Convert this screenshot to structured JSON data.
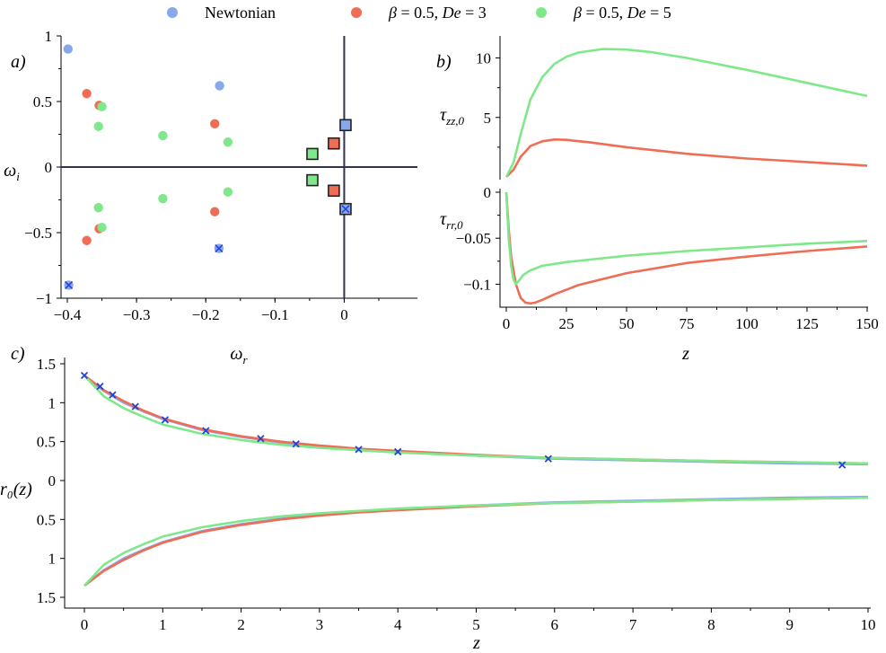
{
  "legend": [
    {
      "text": "Newtonian",
      "color": "#89a8ec"
    },
    {
      "text": "β = 0.5, De = 3",
      "color": "#ef6d55"
    },
    {
      "text": "β = 0.5, De = 5",
      "color": "#7fe88a"
    }
  ],
  "chart_data": [
    {
      "panel": "a)",
      "type": "scatter",
      "xlabel": "ω_r",
      "ylabel": "ω_i",
      "xlim": [
        -0.4,
        0.05
      ],
      "ylim": [
        -1,
        1
      ],
      "xticks": [
        -0.4,
        -0.3,
        -0.2,
        -0.1,
        0
      ],
      "xtick_labels": [
        "−0.4",
        "−0.3",
        "−0.2",
        "−0.1",
        "0"
      ],
      "yticks": [
        1,
        0.5,
        0,
        -0.5,
        -1
      ],
      "ytick_labels": [
        "1",
        "0.5",
        "0",
        "−0.5",
        "−1"
      ],
      "series": [
        {
          "name": "Newtonian",
          "color": "#89a8ec",
          "points": [
            [
              -0.399,
              0.9
            ],
            [
              -0.398,
              -0.9
            ],
            [
              -0.18,
              0.62
            ],
            [
              -0.181,
              -0.62
            ]
          ],
          "crossed": [
            [
              -0.398,
              -0.9
            ],
            [
              -0.181,
              -0.62
            ]
          ],
          "boxed": [
            [
              0.002,
              0.32
            ],
            [
              0.002,
              -0.32
            ]
          ],
          "boxed_crossed": [
            [
              0.002,
              -0.32
            ]
          ]
        },
        {
          "name": "β = 0.5, De = 3",
          "color": "#ef6d55",
          "points": [
            [
              -0.372,
              0.56
            ],
            [
              -0.372,
              -0.56
            ],
            [
              -0.354,
              0.47
            ],
            [
              -0.354,
              -0.47
            ],
            [
              -0.187,
              0.33
            ],
            [
              -0.187,
              -0.34
            ]
          ],
          "boxed": [
            [
              -0.015,
              0.18
            ],
            [
              -0.015,
              -0.18
            ]
          ]
        },
        {
          "name": "β = 0.5, De = 5",
          "color": "#7fe88a",
          "points": [
            [
              -0.35,
              0.46
            ],
            [
              -0.35,
              -0.46
            ],
            [
              -0.355,
              0.31
            ],
            [
              -0.355,
              -0.31
            ],
            [
              -0.262,
              0.24
            ],
            [
              -0.262,
              -0.24
            ],
            [
              -0.168,
              0.19
            ],
            [
              -0.168,
              -0.19
            ]
          ],
          "boxed": [
            [
              -0.046,
              0.1
            ],
            [
              -0.046,
              -0.1
            ]
          ]
        }
      ]
    },
    {
      "panel": "b)",
      "type": "line",
      "xlabel": "z",
      "ylabel_top": "τ_zz,0",
      "ylabel_bottom": "τ_rr,0",
      "xlim": [
        0,
        150
      ],
      "xticks": [
        0,
        25,
        50,
        75,
        100,
        125,
        150
      ],
      "ylim_top": [
        0,
        12
      ],
      "yticks_top": [
        5,
        10
      ],
      "ylim_bottom": [
        -0.125,
        0
      ],
      "yticks_bottom": [
        0,
        -0.05,
        -0.1
      ],
      "ytick_labels_bottom": [
        "0",
        "−0.05",
        "−0.1"
      ],
      "series": [
        {
          "name": "β = 0.5, De = 3 (τ_zz,0)",
          "color": "#ef6d55",
          "x": [
            0,
            3,
            6,
            10,
            15,
            20,
            25,
            35,
            50,
            75,
            100,
            125,
            150
          ],
          "y": [
            0,
            0.6,
            1.7,
            2.6,
            3.0,
            3.15,
            3.12,
            2.9,
            2.5,
            1.95,
            1.55,
            1.25,
            0.95
          ]
        },
        {
          "name": "β = 0.5, De = 5 (τ_zz,0)",
          "color": "#7fe88a",
          "x": [
            0,
            3,
            6,
            10,
            15,
            20,
            25,
            30,
            40,
            50,
            60,
            75,
            100,
            125,
            150
          ],
          "y": [
            0,
            1.2,
            3.6,
            6.5,
            8.4,
            9.5,
            10.1,
            10.45,
            10.75,
            10.7,
            10.5,
            10.0,
            9.0,
            7.9,
            6.8
          ]
        },
        {
          "name": "β = 0.5, De = 3 (τ_rr,0)",
          "color": "#ef6d55",
          "x": [
            0,
            1,
            2,
            4,
            6,
            8,
            10,
            12,
            15,
            20,
            30,
            50,
            75,
            100,
            125,
            150
          ],
          "y": [
            0,
            -0.04,
            -0.07,
            -0.1,
            -0.115,
            -0.12,
            -0.121,
            -0.12,
            -0.117,
            -0.111,
            -0.101,
            -0.088,
            -0.077,
            -0.07,
            -0.064,
            -0.059
          ]
        },
        {
          "name": "β = 0.5, De = 5 (τ_rr,0)",
          "color": "#7fe88a",
          "x": [
            0,
            1,
            2,
            3,
            4,
            5,
            7,
            10,
            15,
            25,
            50,
            75,
            100,
            125,
            150
          ],
          "y": [
            0,
            -0.05,
            -0.08,
            -0.095,
            -0.1,
            -0.097,
            -0.09,
            -0.085,
            -0.08,
            -0.076,
            -0.069,
            -0.064,
            -0.06,
            -0.056,
            -0.053
          ]
        }
      ]
    },
    {
      "panel": "c)",
      "type": "line",
      "xlabel": "z",
      "ylabel": "r₀(z)",
      "xlim": [
        0,
        10
      ],
      "xticks": [
        0,
        1,
        2,
        3,
        4,
        5,
        6,
        7,
        8,
        9,
        10
      ],
      "ylim": [
        -1.5,
        1.5
      ],
      "yticks": [
        1.5,
        1,
        0.5,
        0,
        -0.5,
        -1,
        -1.5
      ],
      "ytick_labels": [
        "1.5",
        "1",
        "0.5",
        "0",
        "0.5",
        "1",
        "1.5"
      ],
      "x": [
        0,
        0.25,
        0.5,
        0.75,
        1,
        1.5,
        2,
        2.5,
        3,
        3.5,
        4,
        5,
        6,
        7,
        8,
        9,
        10
      ],
      "series": [
        {
          "name": "Newtonian",
          "color": "#89a8ec",
          "y": [
            1.35,
            1.15,
            1.0,
            0.89,
            0.79,
            0.65,
            0.56,
            0.49,
            0.44,
            0.4,
            0.37,
            0.32,
            0.28,
            0.26,
            0.24,
            0.22,
            0.21
          ]
        },
        {
          "name": "β = 0.5, De = 3",
          "color": "#ef6d55",
          "y": [
            1.35,
            1.16,
            1.02,
            0.9,
            0.8,
            0.66,
            0.57,
            0.5,
            0.45,
            0.41,
            0.38,
            0.33,
            0.29,
            0.27,
            0.25,
            0.235,
            0.22
          ]
        },
        {
          "name": "β = 0.5, De = 5",
          "color": "#7fe88a",
          "y": [
            1.35,
            1.08,
            0.93,
            0.82,
            0.72,
            0.6,
            0.52,
            0.46,
            0.42,
            0.39,
            0.36,
            0.32,
            0.29,
            0.27,
            0.25,
            0.235,
            0.22
          ]
        },
        {
          "name": "Newtonian (markers)",
          "color": "#2244dd",
          "marker": "x",
          "x": [
            0,
            0.2,
            0.36,
            0.65,
            1.03,
            1.55,
            2.25,
            2.7,
            3.5,
            4.0,
            5.92,
            9.67
          ],
          "y": [
            1.35,
            1.21,
            1.1,
            0.95,
            0.78,
            0.64,
            0.54,
            0.47,
            0.4,
            0.37,
            0.28,
            0.2
          ]
        }
      ]
    }
  ]
}
